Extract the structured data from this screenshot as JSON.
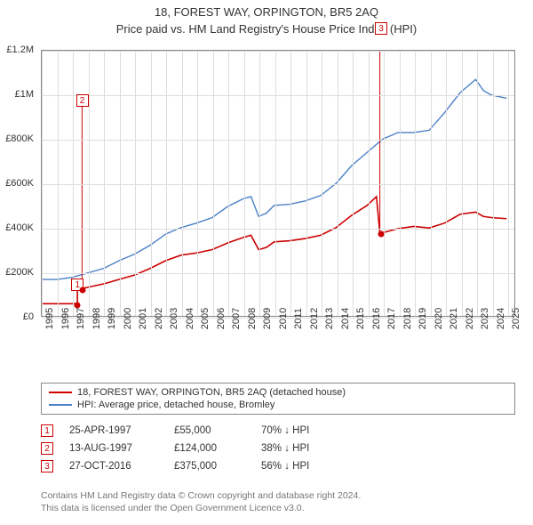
{
  "title_line1": "18, FOREST WAY, ORPINGTON, BR5 2AQ",
  "title_line2": "Price paid vs. HM Land Registry's House Price Index (HPI)",
  "chart": {
    "type": "line",
    "background_color": "#ffffff",
    "grid_color": "#dddddd",
    "border_color": "#888888",
    "xlim": [
      1995,
      2025.5
    ],
    "ylim": [
      0,
      1200000
    ],
    "y_ticks": [
      0,
      200000,
      400000,
      600000,
      800000,
      1000000,
      1200000
    ],
    "y_tick_labels": [
      "£0",
      "£200K",
      "£400K",
      "£600K",
      "£800K",
      "£1M",
      "£1.2M"
    ],
    "x_ticks": [
      1995,
      1996,
      1997,
      1998,
      1999,
      2000,
      2001,
      2002,
      2003,
      2004,
      2005,
      2006,
      2007,
      2008,
      2009,
      2010,
      2011,
      2012,
      2013,
      2014,
      2015,
      2016,
      2017,
      2018,
      2019,
      2020,
      2021,
      2022,
      2023,
      2024,
      2025
    ],
    "x_tick_labels": [
      "1995",
      "1996",
      "1997",
      "1998",
      "1999",
      "2000",
      "2001",
      "2002",
      "2003",
      "2004",
      "2005",
      "2006",
      "2007",
      "2008",
      "2009",
      "2010",
      "2011",
      "2012",
      "2013",
      "2014",
      "2015",
      "2016",
      "2017",
      "2018",
      "2019",
      "2020",
      "2021",
      "2022",
      "2023",
      "2024",
      "2025"
    ],
    "label_fontsize": 11,
    "series": [
      {
        "name": "property_price",
        "label": "18, FOREST WAY, ORPINGTON, BR5 2AQ (detached house)",
        "color": "#cc0000",
        "line_width": 1.6,
        "points": [
          [
            1995.0,
            55000
          ],
          [
            1997.3,
            55000
          ],
          [
            1997.3,
            124000
          ],
          [
            1997.6,
            124000
          ],
          [
            1998.0,
            130000
          ],
          [
            1999.0,
            145000
          ],
          [
            2000.0,
            165000
          ],
          [
            2001.0,
            185000
          ],
          [
            2002.0,
            215000
          ],
          [
            2003.0,
            250000
          ],
          [
            2004.0,
            275000
          ],
          [
            2005.0,
            285000
          ],
          [
            2006.0,
            300000
          ],
          [
            2007.0,
            330000
          ],
          [
            2008.0,
            355000
          ],
          [
            2008.5,
            365000
          ],
          [
            2009.0,
            300000
          ],
          [
            2009.5,
            310000
          ],
          [
            2010.0,
            335000
          ],
          [
            2011.0,
            340000
          ],
          [
            2012.0,
            350000
          ],
          [
            2013.0,
            365000
          ],
          [
            2014.0,
            400000
          ],
          [
            2015.0,
            455000
          ],
          [
            2016.0,
            500000
          ],
          [
            2016.6,
            540000
          ],
          [
            2016.82,
            375000
          ],
          [
            2017.2,
            380000
          ],
          [
            2018.0,
            395000
          ],
          [
            2019.0,
            405000
          ],
          [
            2020.0,
            398000
          ],
          [
            2021.0,
            420000
          ],
          [
            2022.0,
            460000
          ],
          [
            2023.0,
            470000
          ],
          [
            2023.5,
            450000
          ],
          [
            2024.0,
            445000
          ],
          [
            2025.0,
            440000
          ]
        ]
      },
      {
        "name": "hpi",
        "label": "HPI: Average price, detached house, Bromley",
        "color": "#4a80c7",
        "line_width": 1.4,
        "points": [
          [
            1995.0,
            165000
          ],
          [
            1996.0,
            165000
          ],
          [
            1997.0,
            175000
          ],
          [
            1998.0,
            195000
          ],
          [
            1999.0,
            215000
          ],
          [
            2000.0,
            250000
          ],
          [
            2001.0,
            280000
          ],
          [
            2002.0,
            320000
          ],
          [
            2003.0,
            370000
          ],
          [
            2004.0,
            400000
          ],
          [
            2005.0,
            420000
          ],
          [
            2006.0,
            445000
          ],
          [
            2007.0,
            495000
          ],
          [
            2008.0,
            530000
          ],
          [
            2008.5,
            540000
          ],
          [
            2009.0,
            450000
          ],
          [
            2009.5,
            465000
          ],
          [
            2010.0,
            500000
          ],
          [
            2011.0,
            505000
          ],
          [
            2012.0,
            520000
          ],
          [
            2013.0,
            545000
          ],
          [
            2014.0,
            600000
          ],
          [
            2015.0,
            680000
          ],
          [
            2016.0,
            740000
          ],
          [
            2017.0,
            800000
          ],
          [
            2018.0,
            830000
          ],
          [
            2019.0,
            830000
          ],
          [
            2020.0,
            840000
          ],
          [
            2021.0,
            920000
          ],
          [
            2022.0,
            1010000
          ],
          [
            2023.0,
            1070000
          ],
          [
            2023.5,
            1020000
          ],
          [
            2024.0,
            1000000
          ],
          [
            2025.0,
            985000
          ]
        ]
      }
    ],
    "event_markers": [
      {
        "id": "1",
        "x": 1997.3,
        "y": 55000,
        "color": "#cc0000",
        "box_y_offset": -30
      },
      {
        "id": "2",
        "x": 1997.6,
        "y": 124000,
        "color": "#cc0000",
        "box_y_offset": -220
      },
      {
        "id": "3",
        "x": 2016.82,
        "y": 375000,
        "color": "#cc0000",
        "box_y_offset": -238
      }
    ]
  },
  "legend": {
    "items": [
      {
        "color": "#cc0000",
        "label": "18, FOREST WAY, ORPINGTON, BR5 2AQ (detached house)"
      },
      {
        "color": "#4a80c7",
        "label": "HPI: Average price, detached house, Bromley"
      }
    ]
  },
  "transactions": {
    "marker_color": "#cc0000",
    "arrow_glyph": "↓",
    "rows": [
      {
        "id": "1",
        "date": "25-APR-1997",
        "price": "£55,000",
        "pct": "70% ↓ HPI"
      },
      {
        "id": "2",
        "date": "13-AUG-1997",
        "price": "£124,000",
        "pct": "38% ↓ HPI"
      },
      {
        "id": "3",
        "date": "27-OCT-2016",
        "price": "£375,000",
        "pct": "56% ↓ HPI"
      }
    ]
  },
  "footer": {
    "line1": "Contains HM Land Registry data © Crown copyright and database right 2024.",
    "line2": "This data is licensed under the Open Government Licence v3.0."
  }
}
